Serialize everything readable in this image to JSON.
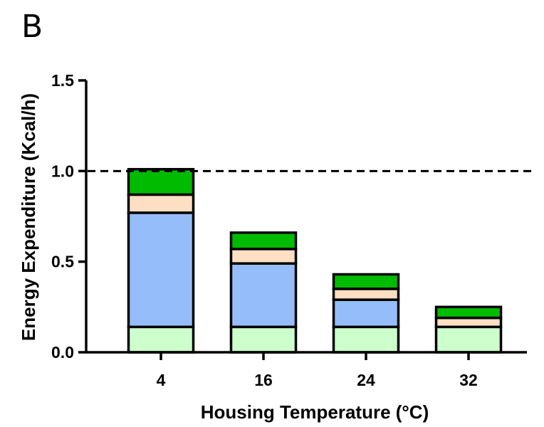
{
  "panel_label": "B",
  "chart_data": {
    "type": "bar",
    "stacked": true,
    "title": "",
    "xlabel": "Housing Temperature (°C)",
    "ylabel": "Energy Expenditure (Kcal/h)",
    "categories": [
      "4",
      "16",
      "24",
      "32"
    ],
    "series": [
      {
        "values": [
          0.14,
          0.14,
          0.14,
          0.14
        ],
        "color": "#ccffcc"
      },
      {
        "values": [
          0.63,
          0.35,
          0.15,
          0.0
        ],
        "color": "#94bdfa"
      },
      {
        "values": [
          0.1,
          0.08,
          0.06,
          0.05
        ],
        "color": "#ffdfc4"
      },
      {
        "values": [
          0.14,
          0.09,
          0.08,
          0.06
        ],
        "color": "#00bb00"
      }
    ],
    "ylim": [
      0,
      1.5
    ],
    "yticks": [
      0.0,
      0.5,
      1.0,
      1.5
    ],
    "ytick_labels": [
      "0.0",
      "0.5",
      "1.0",
      "1.5"
    ],
    "reference_line": {
      "y": 1.0,
      "style": "dashed"
    },
    "grid": false,
    "legend": "none"
  }
}
